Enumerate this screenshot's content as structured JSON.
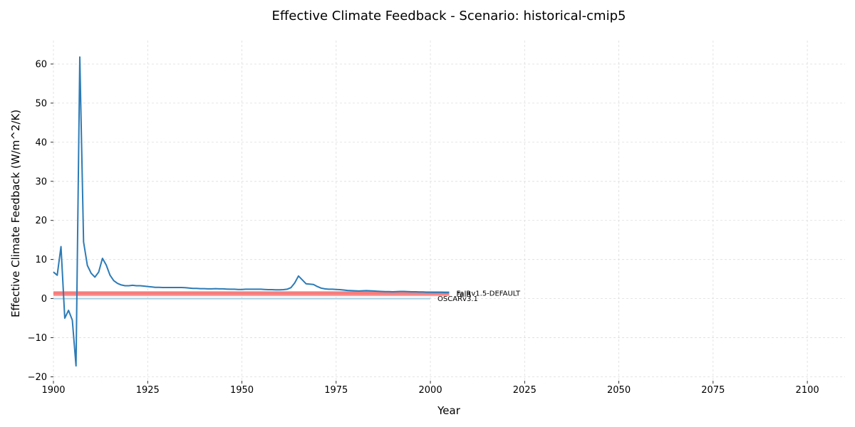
{
  "chart_data": {
    "type": "line",
    "title": "Effective Climate Feedback - Scenario: historical-cmip5",
    "xlabel": "Year",
    "ylabel": "Effective Climate Feedback (W/m^2/K)",
    "xlim": [
      1900,
      2110
    ],
    "ylim": [
      -21,
      66
    ],
    "xticks": [
      1900,
      1925,
      1950,
      1975,
      2000,
      2025,
      2050,
      2075,
      2100
    ],
    "yticks": [
      -20,
      -10,
      0,
      10,
      20,
      30,
      40,
      50,
      60
    ],
    "grid": true,
    "series": [
      {
        "name": "",
        "color": "#2c7bb6",
        "x": [
          1900,
          1901,
          1902,
          1903,
          1904,
          1905,
          1906,
          1907,
          1908,
          1909,
          1910,
          1911,
          1912,
          1913,
          1914,
          1915,
          1916,
          1917,
          1918,
          1919,
          1920,
          1921,
          1922,
          1923,
          1924,
          1925,
          1926,
          1927,
          1928,
          1929,
          1930,
          1931,
          1932,
          1933,
          1934,
          1935,
          1936,
          1937,
          1938,
          1939,
          1940,
          1941,
          1942,
          1943,
          1944,
          1945,
          1946,
          1947,
          1948,
          1949,
          1950,
          1951,
          1952,
          1953,
          1954,
          1955,
          1956,
          1957,
          1958,
          1959,
          1960,
          1961,
          1962,
          1963,
          1964,
          1965,
          1966,
          1967,
          1968,
          1969,
          1970,
          1971,
          1972,
          1973,
          1974,
          1975,
          1976,
          1977,
          1978,
          1979,
          1980,
          1981,
          1982,
          1983,
          1984,
          1985,
          1986,
          1987,
          1988,
          1989,
          1990,
          1991,
          1992,
          1993,
          1994,
          1995,
          1996,
          1997,
          1998,
          1999,
          2000,
          2001,
          2002,
          2003,
          2004,
          2005
        ],
        "y": [
          6.8,
          6.0,
          13.3,
          -5.0,
          -3.0,
          -5.5,
          -17.2,
          61.8,
          14.5,
          8.5,
          6.5,
          5.5,
          6.8,
          10.3,
          8.6,
          6.0,
          4.6,
          3.9,
          3.5,
          3.3,
          3.3,
          3.4,
          3.3,
          3.3,
          3.2,
          3.1,
          3.0,
          2.9,
          2.9,
          2.85,
          2.85,
          2.85,
          2.85,
          2.85,
          2.85,
          2.8,
          2.7,
          2.6,
          2.6,
          2.55,
          2.55,
          2.5,
          2.5,
          2.55,
          2.5,
          2.5,
          2.45,
          2.4,
          2.4,
          2.35,
          2.35,
          2.4,
          2.4,
          2.4,
          2.4,
          2.4,
          2.35,
          2.3,
          2.3,
          2.25,
          2.25,
          2.3,
          2.4,
          2.8,
          4.0,
          5.8,
          4.8,
          3.8,
          3.7,
          3.6,
          3.1,
          2.7,
          2.5,
          2.4,
          2.4,
          2.35,
          2.3,
          2.2,
          2.1,
          2.05,
          2.0,
          1.95,
          2.0,
          2.05,
          2.0,
          1.95,
          1.9,
          1.85,
          1.8,
          1.8,
          1.75,
          1.8,
          1.85,
          1.85,
          1.8,
          1.75,
          1.75,
          1.7,
          1.7,
          1.65,
          1.65,
          1.6,
          1.6,
          1.6,
          1.55,
          1.55
        ]
      },
      {
        "name": "FaIRv1.5-DEFAULT",
        "color": "#f87c7c",
        "x": [
          1900,
          2005
        ],
        "y": [
          1.4,
          1.4
        ]
      },
      {
        "name": "FaIR",
        "color": "#f87c7c",
        "x": [
          1900,
          2005
        ],
        "y": [
          1.1,
          1.1
        ]
      },
      {
        "name": "OSCARv3.1",
        "color": "#a6cee3",
        "x": [
          1900,
          2000
        ],
        "y": [
          0.0,
          0.0
        ]
      }
    ]
  }
}
